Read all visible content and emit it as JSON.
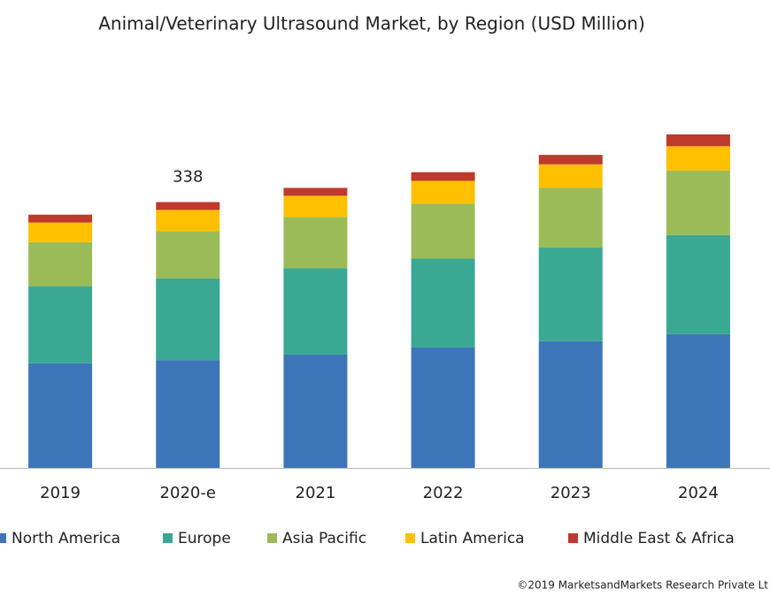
{
  "chart_data": {
    "type": "stacked_bar",
    "title": "Animal/Veterinary Ultrasound Market, by Region (USD Million)",
    "categories": [
      "2019",
      "2020-e",
      "2021",
      "2022",
      "2023",
      "2024"
    ],
    "series": [
      {
        "name": "North America",
        "color": "#3d76b8",
        "values": [
          133,
          137,
          144,
          153,
          161,
          170
        ]
      },
      {
        "name": "Europe",
        "color": "#3aa893",
        "values": [
          98,
          104,
          110,
          113,
          119,
          126
        ]
      },
      {
        "name": "Asia Pacific",
        "color": "#9bbb59",
        "values": [
          56,
          60,
          65,
          70,
          76,
          82
        ]
      },
      {
        "name": "Latin America",
        "color": "#ffc000",
        "values": [
          25,
          27,
          27,
          29,
          30,
          31
        ]
      },
      {
        "name": "Middle East & Africa",
        "color": "#be3a2c",
        "values": [
          10,
          10,
          10,
          11,
          12,
          15
        ]
      }
    ],
    "total_labels": [
      null,
      338,
      null,
      null,
      null,
      null
    ],
    "legend": "bottom",
    "footnote": "©2019 MarketsandMarkets Research Private Lt"
  }
}
